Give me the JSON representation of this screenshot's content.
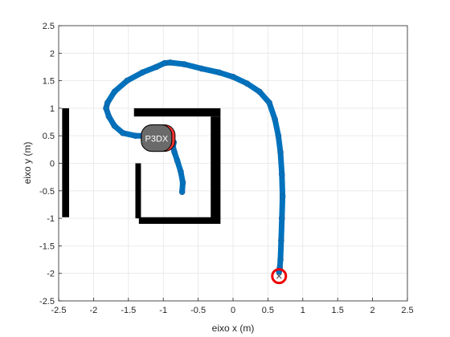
{
  "chart_data": {
    "type": "line",
    "xlabel": "eixo x (m)",
    "ylabel": "eixo y (m)",
    "xlim": [
      -2.5,
      2.5
    ],
    "ylim": [
      -2.5,
      2.5
    ],
    "xticks": [
      "-2.5",
      "-2",
      "-1.5",
      "-1",
      "-0.5",
      "0",
      "0.5",
      "1",
      "1.5",
      "2",
      "2.5"
    ],
    "yticks": [
      "-2.5",
      "-2",
      "-1.5",
      "-1",
      "-0.5",
      "0",
      "0.5",
      "1",
      "1.5",
      "2",
      "2.5"
    ],
    "grid": true,
    "series": [
      {
        "color": "#0072BD",
        "x": [
          -0.73,
          -0.72,
          -0.75,
          -0.8,
          -0.84,
          -0.86,
          -0.85,
          -0.92,
          -1.05,
          -1.22,
          -1.4,
          -1.58,
          -1.7,
          -1.78,
          -1.82,
          -1.8,
          -1.7,
          -1.52,
          -1.3,
          -1.1,
          -0.98,
          -0.9,
          -0.7,
          -0.45,
          -0.2,
          0.0,
          0.2,
          0.38,
          0.52,
          0.6,
          0.65,
          0.68,
          0.7,
          0.71,
          0.7,
          0.69,
          0.68,
          0.67,
          0.66
        ],
        "y": [
          -0.52,
          -0.35,
          -0.15,
          0.05,
          0.2,
          0.3,
          0.38,
          0.46,
          0.5,
          0.5,
          0.5,
          0.55,
          0.68,
          0.85,
          1.0,
          1.1,
          1.3,
          1.5,
          1.65,
          1.75,
          1.82,
          1.83,
          1.8,
          1.72,
          1.65,
          1.57,
          1.45,
          1.3,
          1.1,
          0.8,
          0.5,
          0.2,
          -0.2,
          -0.6,
          -1.0,
          -1.4,
          -1.75,
          -1.9,
          -1.97
        ]
      }
    ],
    "walls": [
      {
        "x": [
          -2.45,
          -2.35
        ],
        "y": [
          -0.98,
          1.0
        ]
      },
      {
        "x": [
          -1.42,
          -0.18
        ],
        "y": [
          0.85,
          1.0
        ]
      },
      {
        "x": [
          -0.32,
          -0.18
        ],
        "y": [
          -1.0,
          0.85
        ]
      },
      {
        "x": [
          -1.4,
          -1.32
        ],
        "y": [
          -1.0,
          0.0
        ]
      },
      {
        "x": [
          -1.35,
          -0.18
        ],
        "y": [
          -1.1,
          -0.98
        ]
      }
    ],
    "robot": {
      "label": "P3DX",
      "x": -1.05,
      "y": 0.45
    },
    "target": {
      "x": 0.66,
      "y": -2.05
    }
  }
}
